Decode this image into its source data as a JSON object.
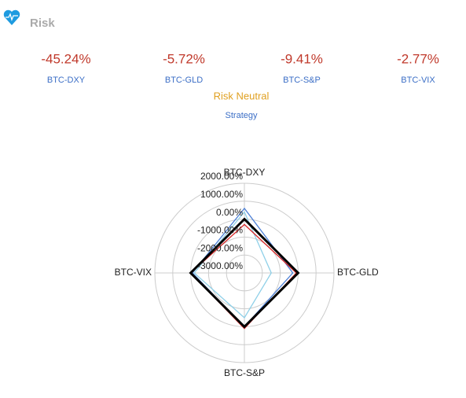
{
  "header": {
    "title": "Risk"
  },
  "metrics": [
    {
      "value": "-45.24%",
      "label": "BTC-DXY"
    },
    {
      "value": "-5.72%",
      "label": "BTC-GLD"
    },
    {
      "value": "-9.41%",
      "label": "BTC-S&P"
    },
    {
      "value": "-2.77%",
      "label": "BTC-VIX"
    }
  ],
  "strategy": {
    "name": "Risk Neutral",
    "label": "Strategy"
  },
  "chart_data": {
    "type": "radar",
    "categories": [
      "BTC-DXY",
      "BTC-GLD",
      "BTC-S&P",
      "BTC-VIX"
    ],
    "ylim": [
      -3000,
      2000
    ],
    "yticks": [
      {
        "value": 2000,
        "label": "2000.00%"
      },
      {
        "value": 1000,
        "label": "1000.00%"
      },
      {
        "value": 0,
        "label": "0.00%"
      },
      {
        "value": -1000,
        "label": "-1000.00%"
      },
      {
        "value": -2000,
        "label": "-2000.00%"
      },
      {
        "value": -3000,
        "label": "-3000.00%"
      }
    ],
    "grid": true,
    "series": [
      {
        "color": "#8fd0e8",
        "values": [
          400,
          -1500,
          -500,
          -200
        ]
      },
      {
        "color": "#4b7fd6",
        "values": [
          600,
          -300,
          0,
          -100
        ]
      },
      {
        "color": "#d62728",
        "values": [
          -300,
          -100,
          100,
          0
        ]
      },
      {
        "color": "#000000",
        "values": [
          0,
          0,
          0,
          0
        ]
      }
    ]
  }
}
